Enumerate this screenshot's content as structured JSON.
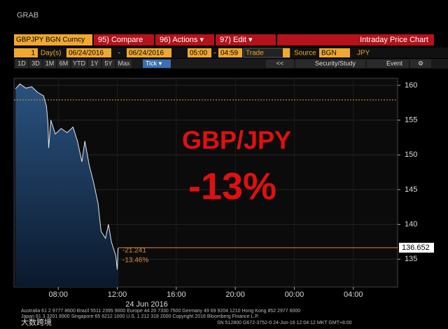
{
  "header": {
    "label": "GRAB"
  },
  "toolbar": {
    "security": "GBPJPY BGN Curncy",
    "compare": "95) Compare",
    "actions": "96) Actions ▾",
    "edit": "97) Edit ▾",
    "title": "Intraday Price Chart"
  },
  "range_bar": {
    "count": "1",
    "unit": "Day(s)",
    "start_date": "06/24/2016",
    "dash": "-",
    "end_date": "06/24/2016",
    "start_time": "05:00",
    "end_time": "04:59",
    "field": "Trade",
    "source_label": "Source",
    "source": "BGN",
    "currency": "JPY"
  },
  "period_bar": {
    "buttons": [
      "1D",
      "3D",
      "1M",
      "6M",
      "YTD",
      "1Y",
      "5Y",
      "Max"
    ],
    "tick": "Tick ▾",
    "back": "<<",
    "study": "Security/Study",
    "event": "Event"
  },
  "chart_data": {
    "type": "line",
    "annotations": [
      "GBP/JPY",
      "-13%"
    ],
    "x": [
      5.1,
      5.4,
      5.8,
      6.2,
      6.6,
      7.0,
      7.2,
      7.3,
      7.35,
      7.5,
      7.8,
      8.2,
      8.6,
      9.0,
      9.3,
      9.6,
      9.8,
      10.1,
      10.4,
      10.7,
      10.9,
      11.2,
      11.4,
      11.6,
      11.9,
      12.0,
      12.05,
      12.1
    ],
    "values": [
      159.5,
      160.2,
      159.6,
      159.8,
      159.0,
      158.5,
      157.0,
      154.5,
      151.0,
      155.0,
      153.0,
      153.8,
      153.2,
      154.0,
      152.0,
      149.0,
      152.0,
      148.5,
      146.0,
      143.0,
      139.0,
      138.0,
      140.0,
      137.5,
      135.5,
      133.5,
      136.5,
      136.652
    ],
    "color": "#e8e8e8",
    "reference_line": 157.9,
    "last_price": 136.652,
    "change": -21.241,
    "change_pct": {
      "value": -13.46,
      "label": "-13.46%"
    },
    "xlabel": "24 Jun 2016",
    "xlim": [
      5,
      31
    ],
    "xticks": [
      {
        "value": 8,
        "label": "08:00"
      },
      {
        "value": 12,
        "label": "12:00"
      },
      {
        "value": 16,
        "label": "16:00"
      },
      {
        "value": 20,
        "label": "20:00"
      },
      {
        "value": 24,
        "label": "00:00"
      },
      {
        "value": 28,
        "label": "04:00"
      }
    ],
    "ylim": [
      131,
      161
    ],
    "yticks": [
      135,
      140,
      145,
      150,
      155,
      160
    ],
    "grid": true
  },
  "footer": {
    "line1": "Australia 61 2 9777 8600 Brazil 5511 2395 9000 Europe 44 20 7330 7500 Germany 49 69 9204 1210 Hong Kong 852 2977 6000",
    "line2": "Japan 81 3 3201 8900      Singapore 65 6212 1000      U.S. 1 212 318 2000      Copyright 2016 Bloomberg Finance L.P.",
    "line3": "SN 512800 G672-3752-0 24-Jun-16 12:04:12 MKT  GMT+8:00",
    "watermark": "大数跨境"
  }
}
